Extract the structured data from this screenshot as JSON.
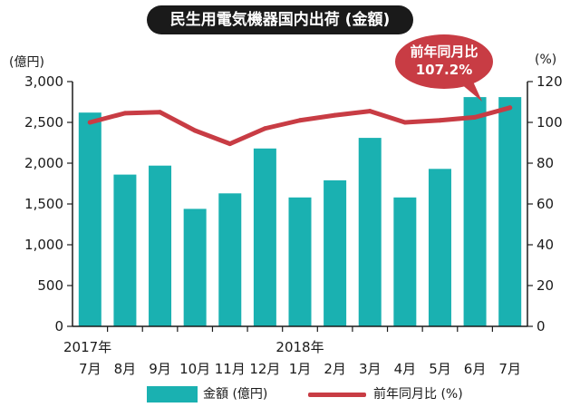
{
  "title": "民生用電気機器国内出荷 (金額)",
  "colors": {
    "bar": "#1ab1b1",
    "line": "#c83c44",
    "title_bg": "#1a1a1a",
    "text": "#1a1a1a"
  },
  "callout": {
    "label": "前年同月比",
    "value": "107.2%"
  },
  "legend": {
    "bar_label": "金額 (億円)",
    "line_label": "前年同月比 (%)"
  },
  "chart_data": {
    "type": "bar",
    "title": "民生用電気機器国内出荷 (金額)",
    "xlabel": "",
    "ylabel": "(億円)",
    "y2label": "(%)",
    "ylim": [
      0,
      3000
    ],
    "y2lim": [
      0,
      120
    ],
    "yticks": [
      "0",
      "500",
      "1,000",
      "1,500",
      "2,000",
      "2,500",
      "3,000"
    ],
    "y2ticks": [
      "0",
      "20",
      "40",
      "60",
      "80",
      "100",
      "120"
    ],
    "categories": [
      "7月",
      "8月",
      "9月",
      "10月",
      "11月",
      "12月",
      "1月",
      "2月",
      "3月",
      "4月",
      "5月",
      "6月",
      "7月"
    ],
    "year_labels": [
      {
        "label": "2017年",
        "index": 0
      },
      {
        "label": "2018年",
        "index": 6
      }
    ],
    "series": [
      {
        "name": "金額 (億円)",
        "type": "bar",
        "axis": "left",
        "values": [
          2620,
          1860,
          1970,
          1440,
          1630,
          2180,
          1580,
          1790,
          2310,
          1580,
          1930,
          2810,
          2810
        ]
      },
      {
        "name": "前年同月比 (%)",
        "type": "line",
        "axis": "right",
        "values": [
          100,
          104.5,
          105,
          96,
          89.5,
          97,
          101,
          103.5,
          105.5,
          100,
          101,
          102.5,
          107.2
        ]
      }
    ],
    "grid": false,
    "legend_position": "bottom"
  }
}
